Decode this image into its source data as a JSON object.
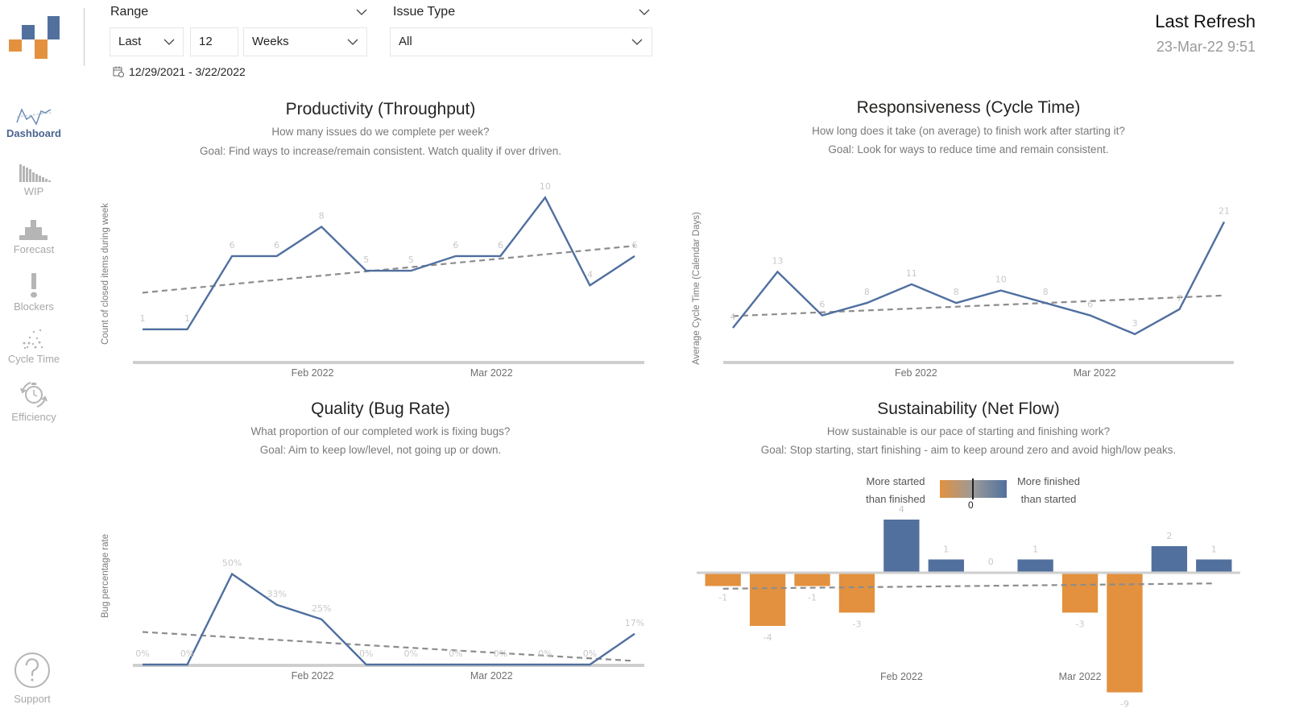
{
  "sidebar": {
    "items": [
      {
        "label": "Dashboard",
        "icon": "line-chart-icon",
        "active": true
      },
      {
        "label": "WIP",
        "icon": "descending-bars-icon",
        "active": false
      },
      {
        "label": "Forecast",
        "icon": "histogram-icon",
        "active": false
      },
      {
        "label": "Blockers",
        "icon": "exclamation-icon",
        "active": false
      },
      {
        "label": "Cycle Time",
        "icon": "scatter-icon",
        "active": false
      },
      {
        "label": "Efficiency",
        "icon": "stopwatch-cycle-icon",
        "active": false
      }
    ],
    "support_label": "Support"
  },
  "filters": {
    "range_label": "Range",
    "range_mode": "Last",
    "range_count": "12",
    "range_unit": "Weeks",
    "date_range": "12/29/2021 - 3/22/2022",
    "issue_type_label": "Issue Type",
    "issue_type_value": "All"
  },
  "refresh": {
    "title": "Last Refresh",
    "value": "23-Mar-22 9:51"
  },
  "colors": {
    "primary_line": "#4f6f9f",
    "negative_bar": "#e3913f",
    "positive_bar": "#52709e",
    "trend": "#8c8c8c"
  },
  "panels": {
    "throughput": {
      "title": "Productivity (Throughput)",
      "subtitle": "How many issues do we complete per week?",
      "goal": "Goal: Find ways to increase/remain consistent. Watch quality if over driven."
    },
    "cycletime": {
      "title": "Responsiveness (Cycle Time)",
      "subtitle": "How long does it take (on average) to finish work after starting it?",
      "goal": "Goal: Look for ways to reduce time and remain consistent."
    },
    "bugrate": {
      "title": "Quality (Bug Rate)",
      "subtitle": "What proportion of our completed work is fixing bugs?",
      "goal": "Goal: Aim to keep low/level, not going up or down."
    },
    "netflow": {
      "title": "Sustainability (Net Flow)",
      "subtitle": "How sustainable is our pace of starting and finishing work?",
      "goal": "Goal: Stop starting, start finishing - aim to keep around zero and avoid high/low peaks.",
      "legend_left_1": "More started",
      "legend_left_2": "than finished",
      "legend_right_1": "More finished",
      "legend_right_2": "than started",
      "legend_zero": "0"
    }
  },
  "chart_data": [
    {
      "id": "throughput",
      "type": "line",
      "title": "Productivity (Throughput)",
      "ylabel": "Count of closed items during week",
      "xlabel": "",
      "x_ticks": [
        {
          "label": "Feb 2022",
          "index": 3.8
        },
        {
          "label": "Mar 2022",
          "index": 7.8
        }
      ],
      "values": [
        1,
        1,
        6,
        6,
        8,
        5,
        5,
        6,
        6,
        10,
        4,
        6
      ],
      "labels": [
        "1",
        "1",
        "6",
        "6",
        "8",
        "5",
        "5",
        "6",
        "6",
        "10",
        "4",
        "6"
      ],
      "trend": [
        3.5,
        6.7
      ],
      "ylim": [
        0,
        11
      ]
    },
    {
      "id": "cycletime",
      "type": "line",
      "title": "Responsiveness (Cycle Time)",
      "ylabel": "Average Cycle Time (Calendar Days)",
      "xlabel": "",
      "x_ticks": [
        {
          "label": "Feb 2022",
          "index": 4.1
        },
        {
          "label": "Mar 2022",
          "index": 8.1
        }
      ],
      "values": [
        4,
        13,
        6,
        8,
        11,
        8,
        10,
        8,
        6,
        3,
        7,
        21
      ],
      "labels": [
        "4",
        "13",
        "6",
        "8",
        "11",
        "8",
        "10",
        "8",
        "6",
        "3",
        "7",
        "21"
      ],
      "trend": [
        5.9,
        9.2
      ],
      "ylim": [
        0,
        23
      ]
    },
    {
      "id": "bugrate",
      "type": "line",
      "title": "Quality (Bug Rate)",
      "ylabel": "Bug percentage rate",
      "xlabel": "",
      "x_ticks": [
        {
          "label": "Feb 2022",
          "index": 3.8
        },
        {
          "label": "Mar 2022",
          "index": 7.8
        }
      ],
      "values": [
        0,
        0,
        50,
        33,
        25,
        0,
        0,
        0,
        0,
        0,
        0,
        17
      ],
      "labels": [
        "0%",
        "0%",
        "50%",
        "33%",
        "25%",
        "0%",
        "0%",
        "0%",
        "0%",
        "0%",
        "0%",
        "17%"
      ],
      "trend": [
        18,
        2
      ],
      "ylim": [
        0,
        60
      ]
    },
    {
      "id": "netflow",
      "type": "bar",
      "title": "Sustainability (Net Flow)",
      "ylabel": "",
      "xlabel": "",
      "x_ticks": [
        {
          "label": "Feb 2022",
          "index": 4.5
        },
        {
          "label": "Mar 2022",
          "index": 8.5
        }
      ],
      "values": [
        -1,
        -4,
        -1,
        -3,
        4,
        1,
        0,
        1,
        -3,
        -9,
        2,
        1
      ],
      "labels": [
        "-1",
        "-4",
        "-1",
        "-3",
        "4",
        "1",
        "0",
        "1",
        "-3",
        "-9",
        "2",
        "1"
      ],
      "trend": [
        -1.2,
        -0.8
      ],
      "ylim": [
        -10,
        5
      ],
      "legend": {
        "negative": "More started than finished",
        "positive": "More finished than started",
        "zero": "0"
      }
    }
  ]
}
